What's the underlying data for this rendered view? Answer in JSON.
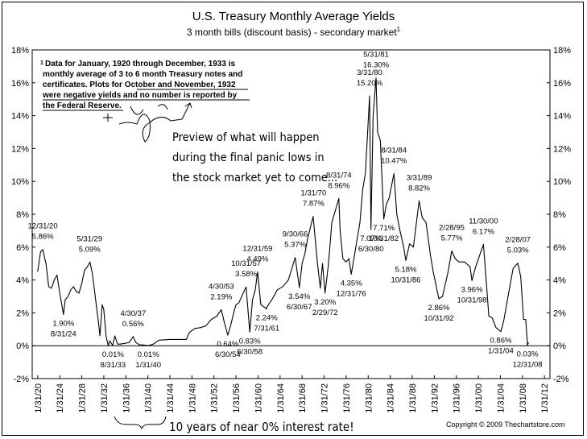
{
  "header": {
    "title": "U.S. Treasury Monthly Average Yields",
    "subtitle": "3 month bills (discount basis) - secondary market",
    "subtitle_mark": "1"
  },
  "copyright": "Copyright © 2009 Thechartstore.com",
  "footnote": {
    "mark": "1",
    "lines": [
      "Data for January, 1920 through December, 1933 is",
      "monthly average of 3 to 6 month Treasury notes and",
      "certificates.  Plots for October and November, 1932",
      "were negative yields and no number is reported by",
      "the Federal Reserve."
    ]
  },
  "handwritten": {
    "preview_lines": [
      "Preview of what will happen",
      "during the final panic lows in",
      "the stock market yet to come..."
    ],
    "bottom_note": "10 years of near 0% interest rate!"
  },
  "chart_data": {
    "type": "line",
    "title": "U.S. Treasury Monthly Average Yields",
    "subtitle": "3 month bills (discount basis) - secondary market",
    "ylim": [
      -2,
      18
    ],
    "xlim": [
      1919,
      2013
    ],
    "y_ticks": [
      "-2%",
      "0%",
      "2%",
      "4%",
      "6%",
      "8%",
      "10%",
      "12%",
      "14%",
      "16%",
      "18%"
    ],
    "x_ticks": [
      "1/31/20",
      "1/31/24",
      "1/31/28",
      "1/31/32",
      "1/31/36",
      "1/31/40",
      "1/31/44",
      "1/31/48",
      "1/31/52",
      "1/31/56",
      "1/31/60",
      "1/31/64",
      "1/31/68",
      "1/31/72",
      "1/31/76",
      "1/31/80",
      "1/31/84",
      "1/31/88",
      "1/31/92",
      "1/31/96",
      "1/31/00",
      "1/31/04",
      "1/31/08",
      "1/31/12"
    ],
    "grid": false,
    "series": [
      {
        "points": [
          [
            1920.0,
            4.5
          ],
          [
            1920.5,
            5.7
          ],
          [
            1920.92,
            5.86
          ],
          [
            1921.5,
            5.0
          ],
          [
            1922.0,
            3.6
          ],
          [
            1922.5,
            3.5
          ],
          [
            1923.0,
            4.0
          ],
          [
            1923.5,
            4.3
          ],
          [
            1924.0,
            3.2
          ],
          [
            1924.67,
            1.9
          ],
          [
            1925.0,
            2.8
          ],
          [
            1925.5,
            3.0
          ],
          [
            1926.0,
            3.4
          ],
          [
            1926.5,
            3.6
          ],
          [
            1927.0,
            3.3
          ],
          [
            1927.5,
            3.2
          ],
          [
            1928.0,
            3.8
          ],
          [
            1928.5,
            4.6
          ],
          [
            1929.0,
            4.8
          ],
          [
            1929.5,
            5.09
          ],
          [
            1929.9,
            4.4
          ],
          [
            1930.3,
            3.4
          ],
          [
            1930.7,
            2.3
          ],
          [
            1931.0,
            1.5
          ],
          [
            1931.3,
            0.6
          ],
          [
            1931.7,
            2.5
          ],
          [
            1932.0,
            2.2
          ],
          [
            1932.4,
            0.6
          ],
          [
            1932.8,
            0.0
          ],
          [
            1933.1,
            0.3
          ],
          [
            1933.6,
            0.01
          ],
          [
            1934.0,
            0.6
          ],
          [
            1934.5,
            0.1
          ],
          [
            1935.0,
            0.1
          ],
          [
            1936.0,
            0.15
          ],
          [
            1936.6,
            0.2
          ],
          [
            1937.33,
            0.56
          ],
          [
            1937.8,
            0.2
          ],
          [
            1938.5,
            0.05
          ],
          [
            1939.0,
            0.05
          ],
          [
            1940.08,
            0.01
          ],
          [
            1941.0,
            0.1
          ],
          [
            1942.0,
            0.34
          ],
          [
            1944.0,
            0.38
          ],
          [
            1947.0,
            0.38
          ],
          [
            1947.5,
            0.8
          ],
          [
            1948.5,
            1.05
          ],
          [
            1949.5,
            1.1
          ],
          [
            1950.5,
            1.2
          ],
          [
            1951.5,
            1.6
          ],
          [
            1952.5,
            1.8
          ],
          [
            1953.33,
            2.19
          ],
          [
            1953.9,
            1.4
          ],
          [
            1954.5,
            0.64
          ],
          [
            1955.0,
            1.2
          ],
          [
            1955.5,
            1.9
          ],
          [
            1956.0,
            2.5
          ],
          [
            1956.5,
            2.6
          ],
          [
            1957.83,
            3.58
          ],
          [
            1958.5,
            0.83
          ],
          [
            1959.0,
            2.8
          ],
          [
            1959.5,
            3.4
          ],
          [
            1959.92,
            4.49
          ],
          [
            1960.5,
            2.5
          ],
          [
            1961.58,
            2.24
          ],
          [
            1961.5,
            2.3
          ],
          [
            1962.5,
            2.8
          ],
          [
            1963.5,
            3.4
          ],
          [
            1964.5,
            3.6
          ],
          [
            1965.5,
            4.0
          ],
          [
            1966.75,
            5.37
          ],
          [
            1967.5,
            3.54
          ],
          [
            1968.0,
            5.0
          ],
          [
            1968.5,
            5.6
          ],
          [
            1969.0,
            6.5
          ],
          [
            1970.0,
            7.87
          ],
          [
            1970.8,
            5.0
          ],
          [
            1971.3,
            3.5
          ],
          [
            1971.7,
            5.0
          ],
          [
            1972.17,
            3.2
          ],
          [
            1972.8,
            5.0
          ],
          [
            1973.4,
            7.5
          ],
          [
            1974.67,
            8.96
          ],
          [
            1974.9,
            7.0
          ],
          [
            1975.4,
            5.3
          ],
          [
            1976.0,
            5.1
          ],
          [
            1976.5,
            5.3
          ],
          [
            1976.92,
            4.35
          ],
          [
            1977.5,
            5.5
          ],
          [
            1978.5,
            7.5
          ],
          [
            1979.0,
            9.5
          ],
          [
            1979.5,
            10.5
          ],
          [
            1980.25,
            15.2
          ],
          [
            1980.5,
            7.07
          ],
          [
            1980.9,
            14.0
          ],
          [
            1981.42,
            16.3
          ],
          [
            1981.7,
            13.0
          ],
          [
            1982.2,
            12.5
          ],
          [
            1982.83,
            7.71
          ],
          [
            1983.3,
            8.6
          ],
          [
            1983.8,
            9.0
          ],
          [
            1984.67,
            10.47
          ],
          [
            1985.2,
            8.0
          ],
          [
            1985.7,
            7.1
          ],
          [
            1986.5,
            5.9
          ],
          [
            1986.83,
            5.18
          ],
          [
            1987.5,
            6.2
          ],
          [
            1988.2,
            6.0
          ],
          [
            1989.25,
            8.82
          ],
          [
            1989.8,
            7.8
          ],
          [
            1990.5,
            7.5
          ],
          [
            1991.3,
            5.5
          ],
          [
            1991.8,
            4.5
          ],
          [
            1992.83,
            2.86
          ],
          [
            1993.5,
            3.0
          ],
          [
            1994.5,
            4.5
          ],
          [
            1995.17,
            5.77
          ],
          [
            1995.8,
            5.3
          ],
          [
            1996.5,
            5.1
          ],
          [
            1997.5,
            5.1
          ],
          [
            1998.5,
            4.8
          ],
          [
            1998.83,
            3.96
          ],
          [
            1999.5,
            4.8
          ],
          [
            2000.92,
            6.17
          ],
          [
            2001.3,
            4.5
          ],
          [
            2001.9,
            1.8
          ],
          [
            2002.5,
            1.7
          ],
          [
            2003.2,
            1.1
          ],
          [
            2004.08,
            0.86
          ],
          [
            2004.6,
            1.5
          ],
          [
            2005.5,
            3.2
          ],
          [
            2006.3,
            4.7
          ],
          [
            2007.17,
            5.03
          ],
          [
            2007.7,
            4.2
          ],
          [
            2008.2,
            1.6
          ],
          [
            2008.6,
            1.6
          ],
          [
            2008.92,
            0.03
          ],
          [
            2009.1,
            0.2
          ]
        ]
      }
    ],
    "annotations": [
      {
        "date": "12/31/20",
        "value": "5.86%",
        "x": 1920.92,
        "y": 5.86,
        "pos": "above"
      },
      {
        "date": "8/31/24",
        "value": "1.90%",
        "x": 1924.67,
        "y": 1.9,
        "pos": "below"
      },
      {
        "date": "5/31/29",
        "value": "5.09%",
        "x": 1929.42,
        "y": 5.09,
        "pos": "above"
      },
      {
        "date": "8/31/33",
        "value": "0.01%",
        "x": 1933.67,
        "y": 0.01,
        "pos": "below"
      },
      {
        "date": "4/30/37",
        "value": "0.56%",
        "x": 1937.33,
        "y": 0.56,
        "pos": "above"
      },
      {
        "date": "1/31/40",
        "value": "0.01%",
        "x": 1940.08,
        "y": 0.01,
        "pos": "below"
      },
      {
        "date": "4/30/53",
        "value": "2.19%",
        "x": 1953.33,
        "y": 2.19,
        "pos": "above"
      },
      {
        "date": "6/30/54",
        "value": "0.64%",
        "x": 1954.5,
        "y": 0.64,
        "pos": "below"
      },
      {
        "date": "10/31/57",
        "value": "3.58%",
        "x": 1957.83,
        "y": 3.58,
        "pos": "above"
      },
      {
        "date": "6/30/58",
        "value": "0.83%",
        "x": 1958.5,
        "y": 0.83,
        "pos": "below"
      },
      {
        "date": "12/31/59",
        "value": "4.49%",
        "x": 1959.92,
        "y": 4.49,
        "pos": "above"
      },
      {
        "date": "7/31/61",
        "value": "2.24%",
        "x": 1961.58,
        "y": 2.24,
        "pos": "below"
      },
      {
        "date": "9/30/66",
        "value": "5.37%",
        "x": 1966.75,
        "y": 5.37,
        "pos": "above"
      },
      {
        "date": "6/30/67",
        "value": "3.54%",
        "x": 1967.5,
        "y": 3.54,
        "pos": "below"
      },
      {
        "date": "1/31/70",
        "value": "7.87%",
        "x": 1970.08,
        "y": 7.87,
        "pos": "above"
      },
      {
        "date": "2/29/72",
        "value": "3.20%",
        "x": 1972.17,
        "y": 3.2,
        "pos": "below"
      },
      {
        "date": "8/31/74",
        "value": "8.96%",
        "x": 1974.67,
        "y": 8.96,
        "pos": "above"
      },
      {
        "date": "12/31/76",
        "value": "4.35%",
        "x": 1976.92,
        "y": 4.35,
        "pos": "below"
      },
      {
        "date": "3/31/80",
        "value": "15.20%",
        "x": 1980.25,
        "y": 15.2,
        "pos": "above"
      },
      {
        "date": "6/30/80",
        "value": "7.07%",
        "x": 1980.5,
        "y": 7.07,
        "pos": "below"
      },
      {
        "date": "5/31/81",
        "value": "16.30%",
        "x": 1981.42,
        "y": 16.3,
        "pos": "above"
      },
      {
        "date": "10/31/82",
        "value": "7.71%",
        "x": 1982.83,
        "y": 7.71,
        "pos": "below"
      },
      {
        "date": "8/31/84",
        "value": "10.47%",
        "x": 1984.67,
        "y": 10.47,
        "pos": "above"
      },
      {
        "date": "10/31/86",
        "value": "5.18%",
        "x": 1986.83,
        "y": 5.18,
        "pos": "below"
      },
      {
        "date": "3/31/89",
        "value": "8.82%",
        "x": 1989.25,
        "y": 8.82,
        "pos": "above"
      },
      {
        "date": "10/31/92",
        "value": "2.86%",
        "x": 1992.83,
        "y": 2.86,
        "pos": "below"
      },
      {
        "date": "2/28/95",
        "value": "5.77%",
        "x": 1995.17,
        "y": 5.77,
        "pos": "above"
      },
      {
        "date": "10/31/98",
        "value": "3.96%",
        "x": 1998.83,
        "y": 3.96,
        "pos": "below"
      },
      {
        "date": "11/30/00",
        "value": "6.17%",
        "x": 2000.92,
        "y": 6.17,
        "pos": "above"
      },
      {
        "date": "1/31/04",
        "value": "0.86%",
        "x": 2004.08,
        "y": 0.86,
        "pos": "below"
      },
      {
        "date": "2/28/07",
        "value": "5.03%",
        "x": 2007.17,
        "y": 5.03,
        "pos": "above"
      },
      {
        "date": "12/31/08",
        "value": "0.03%",
        "x": 2008.92,
        "y": 0.03,
        "pos": "below"
      }
    ]
  }
}
